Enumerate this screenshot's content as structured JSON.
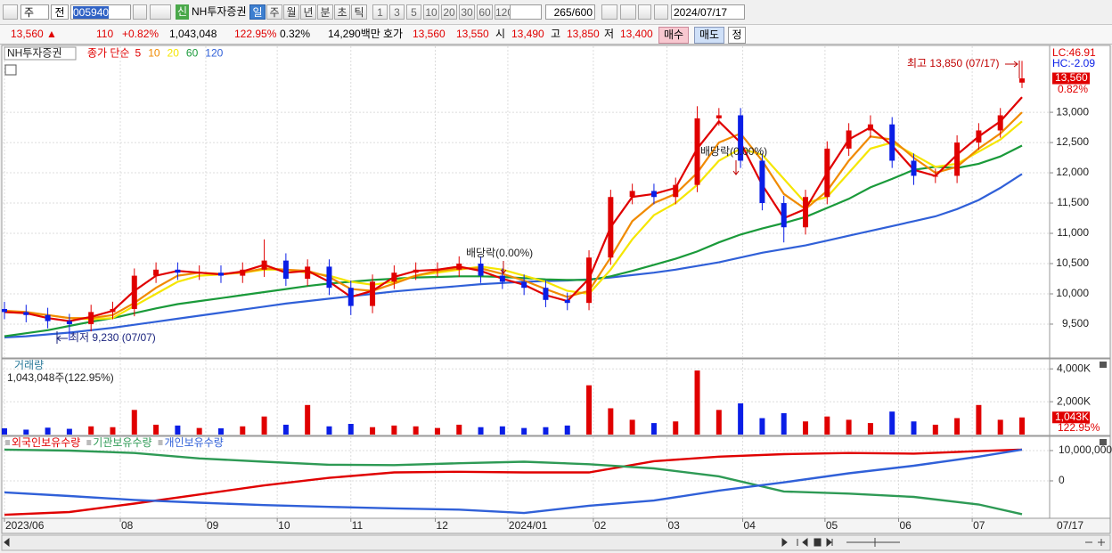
{
  "toolbar": {
    "period_type": "주",
    "prev": "전",
    "code": "005940",
    "name": "NH투자증권",
    "badge": "신",
    "periods": [
      "일",
      "주",
      "월",
      "년",
      "분",
      "초",
      "틱"
    ],
    "intervals": [
      "1",
      "3",
      "5",
      "10",
      "20",
      "30",
      "60",
      "120"
    ],
    "count": "265",
    "count_max": "/600",
    "date": "2024/07/17"
  },
  "quote": {
    "price": "13,560 ▲",
    "change": "110",
    "change_pct": "+0.82%",
    "volume": "1,043,048",
    "volume_ratio": "122.95%",
    "turnover": "0.32%",
    "amount": "14,290백만",
    "ask_label": "호가",
    "ask": "13,560",
    "bid": "13,550",
    "open_label": "시",
    "open": "13,490",
    "high_label": "고",
    "high": "13,850",
    "low_label": "저",
    "low": "13,400",
    "buy": "매수",
    "sell": "매도",
    "correct": "정"
  },
  "chart_data": [
    {
      "type": "candlestick",
      "title": "NH투자증권",
      "ma_label": "종가 단순",
      "xlim": [
        0,
        47
      ],
      "xticks": [
        {
          "value": 0,
          "label": "2023/06"
        },
        {
          "value": 5.35,
          "label": "08"
        },
        {
          "value": 9.3,
          "label": "09"
        },
        {
          "value": 12.6,
          "label": "10"
        },
        {
          "value": 16,
          "label": "11"
        },
        {
          "value": 19.9,
          "label": "12"
        },
        {
          "value": 23.25,
          "label": "2024/01"
        },
        {
          "value": 27.2,
          "label": "02"
        },
        {
          "value": 30.6,
          "label": "03"
        },
        {
          "value": 34.1,
          "label": "04"
        },
        {
          "value": 37.9,
          "label": "05"
        },
        {
          "value": 41.3,
          "label": "06"
        },
        {
          "value": 44.7,
          "label": "07"
        }
      ],
      "x_end_label": "07/17",
      "open": [
        9750,
        9700,
        9650,
        9550,
        9500,
        9700,
        9750,
        10300,
        10400,
        10350,
        10350,
        10300,
        10400,
        10550,
        10250,
        10450,
        10100,
        9800,
        10200,
        10350,
        10400,
        10400,
        10500,
        10300,
        10200,
        10100,
        9900,
        9850,
        10600,
        11600,
        11700,
        11600,
        11800,
        12900,
        12950,
        12200,
        11500,
        11100,
        11600,
        12400,
        12700,
        12800,
        12200,
        11950,
        11950,
        12500,
        12700,
        13490
      ],
      "high": [
        9870,
        9820,
        9770,
        9670,
        9820,
        9870,
        10420,
        10520,
        10520,
        10470,
        10470,
        10520,
        10900,
        10670,
        10570,
        10570,
        10220,
        10320,
        10470,
        10520,
        10520,
        10620,
        10620,
        10420,
        10320,
        10220,
        10020,
        10720,
        11720,
        11820,
        11820,
        11920,
        13100,
        13070,
        13070,
        12320,
        11620,
        11720,
        12520,
        12820,
        12950,
        12920,
        12320,
        12070,
        12620,
        12820,
        13070,
        13850
      ],
      "low": [
        9580,
        9530,
        9430,
        9230,
        9380,
        9580,
        9630,
        10180,
        10230,
        10230,
        10180,
        10180,
        10280,
        10130,
        10130,
        9980,
        9650,
        9680,
        10080,
        10230,
        10280,
        10280,
        10180,
        10080,
        9980,
        9780,
        9730,
        9730,
        10480,
        11480,
        11480,
        11480,
        11680,
        12780,
        12080,
        11380,
        10850,
        10980,
        11480,
        12280,
        12580,
        12080,
        11800,
        11830,
        11830,
        12380,
        12580,
        13400
      ],
      "close": [
        9700,
        9650,
        9550,
        9500,
        9700,
        9750,
        10300,
        10400,
        10350,
        10350,
        10300,
        10400,
        10550,
        10250,
        10450,
        10100,
        9800,
        10200,
        10350,
        10400,
        10400,
        10500,
        10300,
        10200,
        10100,
        9900,
        9850,
        10600,
        11600,
        11700,
        11600,
        11800,
        12900,
        12950,
        12200,
        11500,
        11100,
        11600,
        12400,
        12700,
        12800,
        12200,
        11950,
        11950,
        12500,
        12700,
        12950,
        13560
      ],
      "up_color": "#e00000",
      "down_color": "#0a1ee6",
      "series": [
        {
          "name": "5",
          "color": "#e00000",
          "values": [
            9700,
            9680,
            9600,
            9550,
            9620,
            9720,
            10050,
            10300,
            10380,
            10350,
            10320,
            10370,
            10480,
            10350,
            10380,
            10200,
            9950,
            10050,
            10280,
            10380,
            10400,
            10450,
            10380,
            10250,
            10150,
            9980,
            9880,
            10250,
            11100,
            11600,
            11650,
            11750,
            12400,
            12850,
            12500,
            11800,
            11250,
            11400,
            12000,
            12550,
            12750,
            12450,
            12050,
            11950,
            12300,
            12600,
            12850,
            13250
          ]
        },
        {
          "name": "10",
          "color": "#f08a00",
          "values": [
            9720,
            9700,
            9650,
            9600,
            9600,
            9650,
            9850,
            10100,
            10300,
            10350,
            10330,
            10350,
            10420,
            10400,
            10380,
            10280,
            10080,
            10050,
            10170,
            10300,
            10380,
            10420,
            10420,
            10330,
            10220,
            10080,
            9950,
            10050,
            10600,
            11200,
            11500,
            11650,
            12000,
            12500,
            12650,
            12200,
            11650,
            11400,
            11700,
            12200,
            12600,
            12550,
            12250,
            12000,
            12100,
            12400,
            12650,
            13000
          ]
        },
        {
          "name": "20",
          "color": "#f5e600",
          "values": [
            9700,
            9680,
            9650,
            9600,
            9580,
            9600,
            9800,
            10000,
            10200,
            10300,
            10320,
            10350,
            10400,
            10400,
            10350,
            10300,
            10200,
            10150,
            10200,
            10300,
            10350,
            10400,
            10450,
            10400,
            10300,
            10200,
            10050,
            10000,
            10400,
            10900,
            11300,
            11500,
            11800,
            12200,
            12400,
            12300,
            11900,
            11500,
            11600,
            12000,
            12400,
            12500,
            12300,
            12100,
            12150,
            12350,
            12550,
            12850
          ]
        },
        {
          "name": "60",
          "color": "#1a9a3a",
          "values": [
            9300,
            9350,
            9400,
            9470,
            9540,
            9600,
            9680,
            9760,
            9830,
            9880,
            9930,
            9980,
            10030,
            10080,
            10130,
            10170,
            10200,
            10230,
            10250,
            10270,
            10280,
            10290,
            10290,
            10280,
            10260,
            10240,
            10230,
            10230,
            10290,
            10380,
            10480,
            10580,
            10700,
            10850,
            10980,
            11080,
            11170,
            11270,
            11420,
            11570,
            11760,
            11900,
            12050,
            12100,
            12080,
            12150,
            12270,
            12450
          ]
        },
        {
          "name": "120",
          "color": "#3060d8",
          "values": [
            9280,
            9300,
            9330,
            9360,
            9400,
            9440,
            9490,
            9540,
            9590,
            9640,
            9690,
            9740,
            9790,
            9840,
            9880,
            9920,
            9960,
            10000,
            10040,
            10070,
            10100,
            10130,
            10160,
            10180,
            10200,
            10210,
            10220,
            10240,
            10270,
            10310,
            10350,
            10400,
            10460,
            10520,
            10600,
            10680,
            10740,
            10800,
            10880,
            10960,
            11040,
            11120,
            11200,
            11280,
            11400,
            11550,
            11750,
            11980
          ]
        }
      ],
      "ylim": [
        8970,
        14090
      ],
      "yticks": [
        {
          "value": 9500,
          "label": "9,500"
        },
        {
          "value": 10000,
          "label": "10,000"
        },
        {
          "value": 10500,
          "label": "10,500"
        },
        {
          "value": 11000,
          "label": "11,000"
        },
        {
          "value": 11500,
          "label": "11,500"
        },
        {
          "value": 12000,
          "label": "12,000"
        },
        {
          "value": 12500,
          "label": "12,500"
        },
        {
          "value": 13000,
          "label": "13,000"
        }
      ],
      "grid": true,
      "annotations": [
        "최고 13,850 (07/17)",
        "최저 9,230 (07/07)",
        "배당락(0.00%)",
        "배당락(0.00%)"
      ],
      "indicators": [
        {
          "text": "LC:46.91",
          "color": "#e00000"
        },
        {
          "text": "HC:-2.09",
          "color": "#0a1ee6"
        }
      ],
      "last_price_label": "13,560",
      "last_change_label": "0.82%"
    },
    {
      "type": "bar",
      "title": "거래량",
      "subtitle": "1,043,048주(122.95%)",
      "values": [
        380,
        300,
        420,
        350,
        500,
        450,
        1500,
        600,
        550,
        400,
        380,
        500,
        1100,
        600,
        1800,
        500,
        650,
        450,
        550,
        500,
        400,
        600,
        450,
        500,
        400,
        450,
        550,
        3000,
        1600,
        900,
        700,
        800,
        3900,
        1500,
        1900,
        1000,
        1300,
        800,
        1100,
        900,
        700,
        1400,
        800,
        600,
        1000,
        1800,
        900,
        1043
      ],
      "ylim": [
        0,
        4500
      ],
      "yticks": [
        {
          "value": 2000,
          "label": "2,000K"
        },
        {
          "value": 4000,
          "label": "4,000K"
        }
      ],
      "last_label": "1,043K",
      "last_ratio_label": "122.95%"
    },
    {
      "type": "line",
      "x": [
        0,
        3,
        6,
        9,
        12,
        15,
        18,
        21,
        24,
        27,
        30,
        33,
        36,
        39,
        42,
        45,
        47
      ],
      "series": [
        {
          "name": "외국인보유수량",
          "color": "#e00000",
          "values": [
            -11200000,
            -10300000,
            -7500000,
            -4500000,
            -1500000,
            1000000,
            2800000,
            3000000,
            2800000,
            2800000,
            6500000,
            8000000,
            8800000,
            9200000,
            9000000,
            9800000,
            10300000
          ]
        },
        {
          "name": "기관보유수량",
          "color": "#2e9a55",
          "values": [
            10300000,
            10000000,
            9200000,
            7400000,
            6300000,
            5300000,
            5200000,
            5800000,
            6300000,
            5500000,
            4100000,
            1500000,
            -3500000,
            -4200000,
            -5300000,
            -7800000,
            -11000000
          ]
        },
        {
          "name": "개인보유수량",
          "color": "#3060d8",
          "values": [
            -3800000,
            -5000000,
            -6300000,
            -7200000,
            -8000000,
            -8600000,
            -9100000,
            -9500000,
            -10600000,
            -8200000,
            -6500000,
            -3200000,
            -500000,
            2500000,
            5000000,
            8000000,
            10300000
          ]
        }
      ],
      "ylim": [
        -11760000,
        14100000
      ],
      "yticks": [
        0,
        {
          "value": 10000000,
          "label": "10,000,000"
        }
      ]
    }
  ]
}
